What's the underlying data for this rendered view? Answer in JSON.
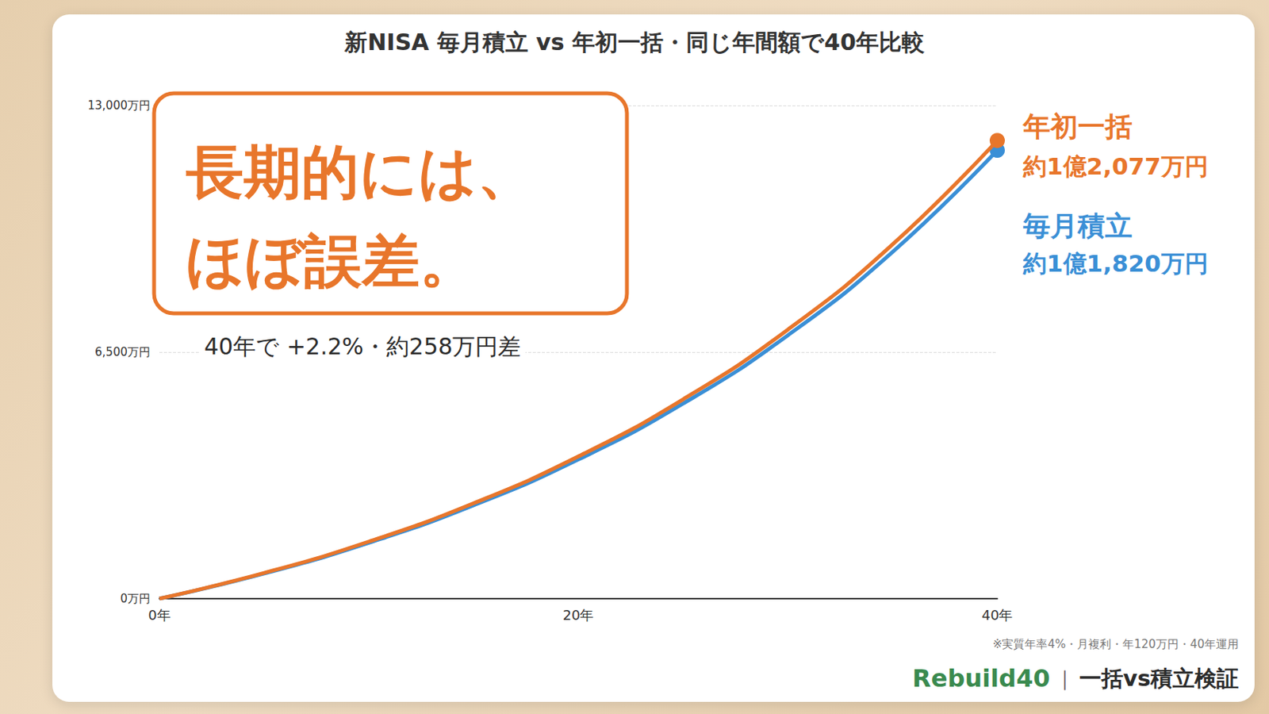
{
  "chart_data": {
    "type": "line",
    "title": "新NISA 毎月積立 vs 年初一括・同じ年間額で40年比較",
    "x": [
      0,
      5,
      10,
      15,
      20,
      25,
      30,
      35,
      40
    ],
    "xlim": [
      0,
      40
    ],
    "xticks": [
      {
        "value": 0,
        "label": "0年"
      },
      {
        "value": 20,
        "label": "20年"
      },
      {
        "value": 40,
        "label": "40年"
      }
    ],
    "ylim": [
      0,
      13000
    ],
    "yticks": [
      {
        "value": 0,
        "label": "0万円"
      },
      {
        "value": 6500,
        "label": "6,500万円"
      },
      {
        "value": 13000,
        "label": "13,000万円"
      }
    ],
    "grid": true,
    "series": [
      {
        "name": "年初一括",
        "color": "#e8762b",
        "marker": "circle",
        "end_label": "約1億2,077万円",
        "values": [
          0,
          678,
          1505,
          2515,
          3749,
          5254,
          7092,
          9337,
          12077
        ]
      },
      {
        "name": "毎月積立",
        "color": "#3a8fd6",
        "marker": "circle",
        "end_label": "約1億1,820万円",
        "values": [
          0,
          663,
          1473,
          2461,
          3668,
          5141,
          6941,
          9138,
          11820
        ]
      }
    ],
    "annotations": {
      "headline": [
        "長期的には、",
        "ほぼ誤差。"
      ],
      "subline": "40年で +2.2%・約258万円差",
      "footnote": "※実質年率4%・月複利・年120万円・40年運用",
      "brand": "Rebuild40",
      "separator": "｜",
      "brand_sub": "一括vs積立検証"
    }
  }
}
